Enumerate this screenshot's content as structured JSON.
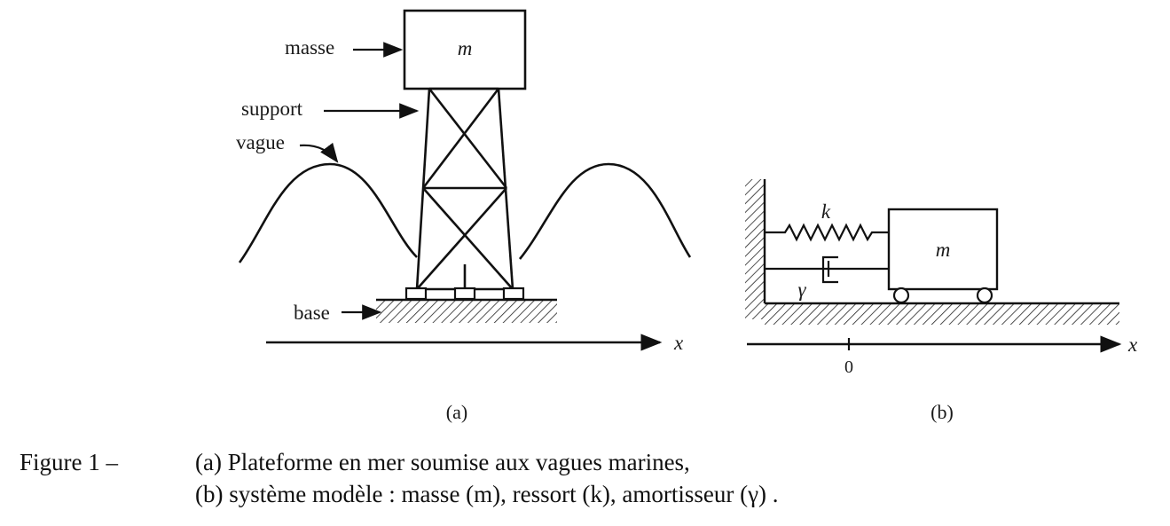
{
  "figure_a": {
    "label_masse": "masse",
    "label_support": "support",
    "label_vague": "vague",
    "label_base": "base",
    "mass_symbol": "m",
    "axis_label": "x",
    "sublabel": "(a)"
  },
  "figure_b": {
    "spring_symbol": "k",
    "damper_symbol": "γ",
    "mass_symbol": "m",
    "axis_label": "x",
    "origin_tick": "0",
    "sublabel": "(b)"
  },
  "caption": {
    "prefix": "Figure 1 –",
    "line1": "(a) Plateforme en mer soumise aux vagues marines,",
    "line2": "(b) système modèle :  masse (m), ressort (k), amortisseur (γ) ."
  }
}
